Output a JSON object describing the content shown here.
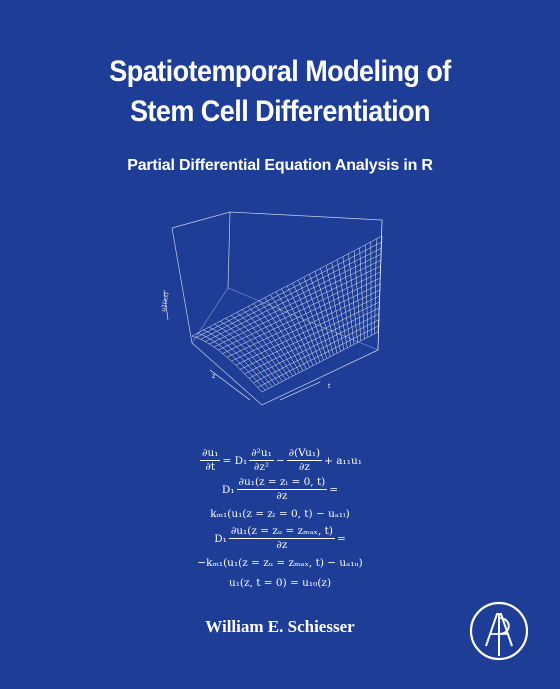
{
  "book": {
    "title_line1": "Spatiotemporal Modeling of",
    "title_line2": "Stem Cell Differentiation",
    "subtitle": "Partial Differential Equation Analysis in R",
    "author": "William E. Schiesser"
  },
  "plot": {
    "axis_label": "u1(z,t)",
    "tick_z": "z",
    "tick_t": "t"
  },
  "equations": {
    "eq1_num": "∂u₁",
    "eq1_den": "∂t",
    "eq1_mid": "= D₁",
    "eq1_num2": "∂²u₁",
    "eq1_den2": "∂z²",
    "eq1_minus": "−",
    "eq1_num3": "∂(Vu₁)",
    "eq1_den3": "∂z",
    "eq1_tail": "+ a₁₁u₁",
    "eq2_pre": "D₁",
    "eq2_num": "∂u₁(z = zₗ = 0, t)",
    "eq2_den": "∂z",
    "eq2_tail": "=",
    "eq3": "kₘ₁(u₁(z = zₗ = 0, t) − uₐ₁ₗ)",
    "eq4_pre": "D₁",
    "eq4_num": "∂u₁(z = zᵤ = zₘₐₓ, t)",
    "eq4_den": "∂z",
    "eq4_tail": "=",
    "eq5": "−kₘ₁(u₁(z = zᵤ = zₘₐₓ, t) − uₐ₁ᵤ)",
    "eq6": "u₁(z, t = 0) = u₁₀(z)"
  },
  "colors": {
    "background": "#1d3d96",
    "text": "#ffffff"
  },
  "logo": {
    "name": "elsevier-ap-logo",
    "letters": "AP"
  }
}
